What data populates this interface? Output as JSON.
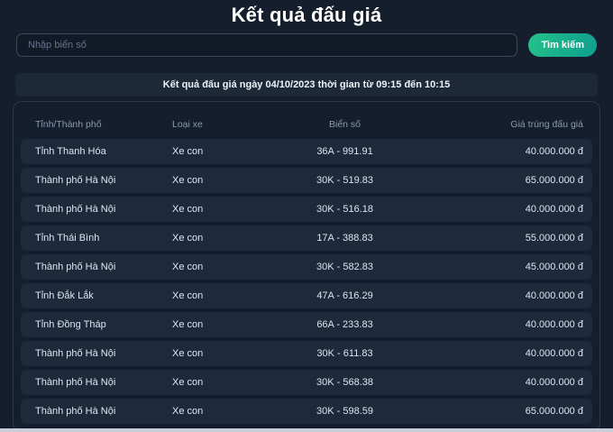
{
  "page": {
    "title": "Kết quả đấu giá"
  },
  "search": {
    "placeholder": "Nhập biển số",
    "button_label": "Tìm kiếm"
  },
  "banner": {
    "text": "Kết quả đấu giá ngày 04/10/2023 thời gian từ 09:15 đến 10:15",
    "date": "04/10/2023",
    "time_from": "09:15",
    "time_to": "10:15"
  },
  "table": {
    "columns": [
      "Tỉnh/Thành phố",
      "Loại xe",
      "Biển số",
      "Giá trúng đấu giá"
    ],
    "rows": [
      [
        "Tỉnh Thanh Hóa",
        "Xe con",
        "36A - 991.91",
        "40.000.000 đ"
      ],
      [
        "Thành phố Hà Nội",
        "Xe con",
        "30K - 519.83",
        "65.000.000 đ"
      ],
      [
        "Thành phố Hà Nội",
        "Xe con",
        "30K - 516.18",
        "40.000.000 đ"
      ],
      [
        "Tỉnh Thái Bình",
        "Xe con",
        "17A - 388.83",
        "55.000.000 đ"
      ],
      [
        "Thành phố Hà Nội",
        "Xe con",
        "30K - 582.83",
        "45.000.000 đ"
      ],
      [
        "Tỉnh Đắk Lắk",
        "Xe con",
        "47A - 616.29",
        "40.000.000 đ"
      ],
      [
        "Tỉnh Đồng Tháp",
        "Xe con",
        "66A - 233.83",
        "40.000.000 đ"
      ],
      [
        "Thành phố Hà Nội",
        "Xe con",
        "30K - 611.83",
        "40.000.000 đ"
      ],
      [
        "Thành phố Hà Nội",
        "Xe con",
        "30K - 568.38",
        "40.000.000 đ"
      ],
      [
        "Thành phố Hà Nội",
        "Xe con",
        "30K - 598.59",
        "65.000.000 đ"
      ]
    ]
  },
  "colors": {
    "page_bg": "#151e2d",
    "row_bg": "#1d2a3b",
    "banner_bg": "#1e2938",
    "accent_gradient_start": "#27c289",
    "accent_gradient_end": "#0f9f90",
    "muted_text": "#8b9ab0"
  }
}
